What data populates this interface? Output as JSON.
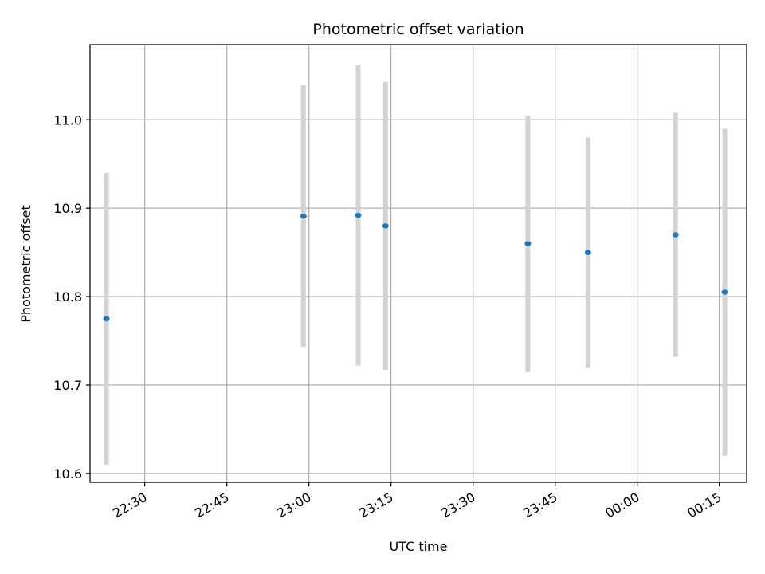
{
  "chart_data": {
    "type": "scatter",
    "title": "Photometric offset variation",
    "xlabel": "UTC time",
    "ylabel": "Photometric offset",
    "x_axis": {
      "type": "time",
      "range": [
        "22:20",
        "00:20"
      ],
      "ticks": [
        "22:30",
        "22:45",
        "23:00",
        "23:15",
        "23:30",
        "23:45",
        "00:00",
        "00:15"
      ]
    },
    "y_axis": {
      "range": [
        10.59,
        11.085
      ],
      "ticks": [
        10.6,
        10.7,
        10.8,
        10.9,
        11.0
      ],
      "tick_labels": [
        "10.6",
        "10.7",
        "10.8",
        "10.9",
        "11.0"
      ]
    },
    "grid": true,
    "series": [
      {
        "x": [
          "22:23",
          "22:59",
          "23:09",
          "23:14",
          "23:40",
          "23:51",
          "00:07",
          "00:16"
        ],
        "y": [
          10.775,
          10.891,
          10.892,
          10.88,
          10.86,
          10.85,
          10.87,
          10.805
        ],
        "yerr": [
          0.165,
          0.148,
          0.17,
          0.163,
          0.145,
          0.13,
          0.138,
          0.185
        ],
        "marker_color": "#1f77b4",
        "errorbar_color": "#d3d3d3"
      }
    ]
  }
}
